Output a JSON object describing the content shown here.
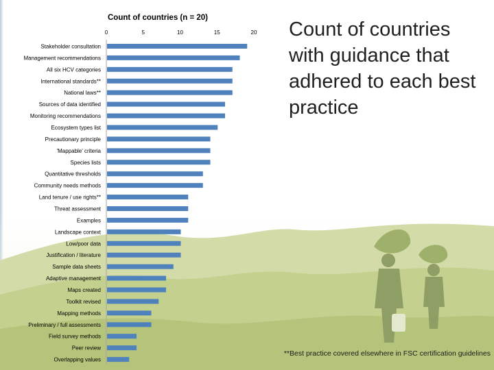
{
  "slide": {
    "heading": "Count of countries with guidance that adhered to each best practice",
    "footnote": "**Best practice covered elsewhere in FSC certification guidelines"
  },
  "colors": {
    "bar": "#4f81bd",
    "background_photo_tint": "#b9c982",
    "text": "#000000"
  },
  "chart_data": {
    "type": "bar",
    "orientation": "horizontal",
    "title": "Count of countries (n = 20)",
    "xaxis_position": "top",
    "xlim": [
      0,
      20
    ],
    "xticks": [
      0,
      5,
      10,
      15,
      20
    ],
    "grid": false,
    "categories": [
      "Stakeholder consultation",
      "Management recommendations",
      "All six HCV categories",
      "International standards**",
      "National laws**",
      "Sources of data identified",
      "Monitoring recommendations",
      "Ecosystem types list",
      "Precautionary principle",
      "'Mappable' criteria",
      "Species lists",
      "Quantitative thresholds",
      "Community needs methods",
      "Land tenure / use rights**",
      "Threat assessment",
      "Examples",
      "Landscape context",
      "Low/poor data",
      "Justification / literature",
      "Sample data sheets",
      "Adaptive management",
      "Maps created",
      "Toolkit revised",
      "Mapping methods",
      "Preliminary / full assessments",
      "Field survey methods",
      "Peer review",
      "Overlapping values"
    ],
    "values": [
      19,
      18,
      17,
      17,
      17,
      16,
      16,
      15,
      14,
      14,
      14,
      13,
      13,
      11,
      11,
      11,
      10,
      10,
      10,
      9,
      8,
      8,
      7,
      6,
      6,
      4,
      4,
      3
    ]
  }
}
